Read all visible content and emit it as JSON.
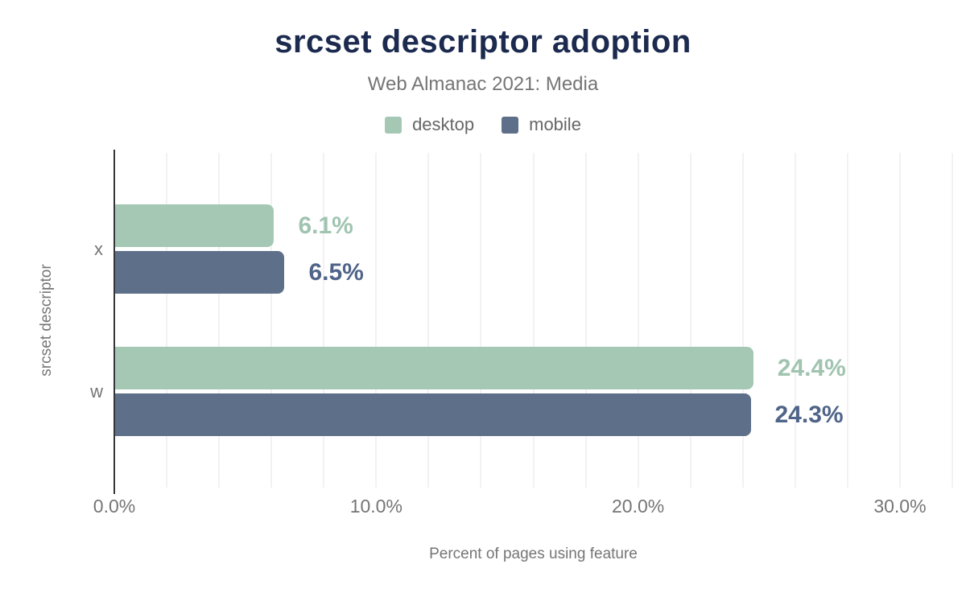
{
  "chart_data": {
    "type": "bar",
    "orientation": "horizontal",
    "title": "srcset descriptor adoption",
    "subtitle": "Web Almanac 2021: Media",
    "categories": [
      "x",
      "w"
    ],
    "series": [
      {
        "name": "desktop",
        "color": "#a5c8b5",
        "label_color": "#a0c4b0",
        "values": [
          6.1,
          24.4
        ],
        "value_labels": [
          "6.1%",
          "24.4%"
        ]
      },
      {
        "name": "mobile",
        "color": "#5e7089",
        "label_color": "#4f6488",
        "values": [
          6.5,
          24.3
        ],
        "value_labels": [
          "6.5%",
          "24.3%"
        ]
      }
    ],
    "xlabel": "Percent of pages using feature",
    "ylabel": "srcset descriptor",
    "xlim": [
      0,
      32
    ],
    "x_ticks": [
      {
        "value": 0,
        "label": "0.0%"
      },
      {
        "value": 10,
        "label": "10.0%"
      },
      {
        "value": 20,
        "label": "20.0%"
      },
      {
        "value": 30,
        "label": "30.0%"
      }
    ],
    "grid": {
      "step": 2,
      "color": "#f2f2f2",
      "on": true
    },
    "legend_position": "top"
  },
  "colors": {
    "title": "#1b2a4e",
    "subtitle_text": "#757575",
    "axis_text": "#757575",
    "axis_line": "#333538",
    "background": "#ffffff"
  }
}
